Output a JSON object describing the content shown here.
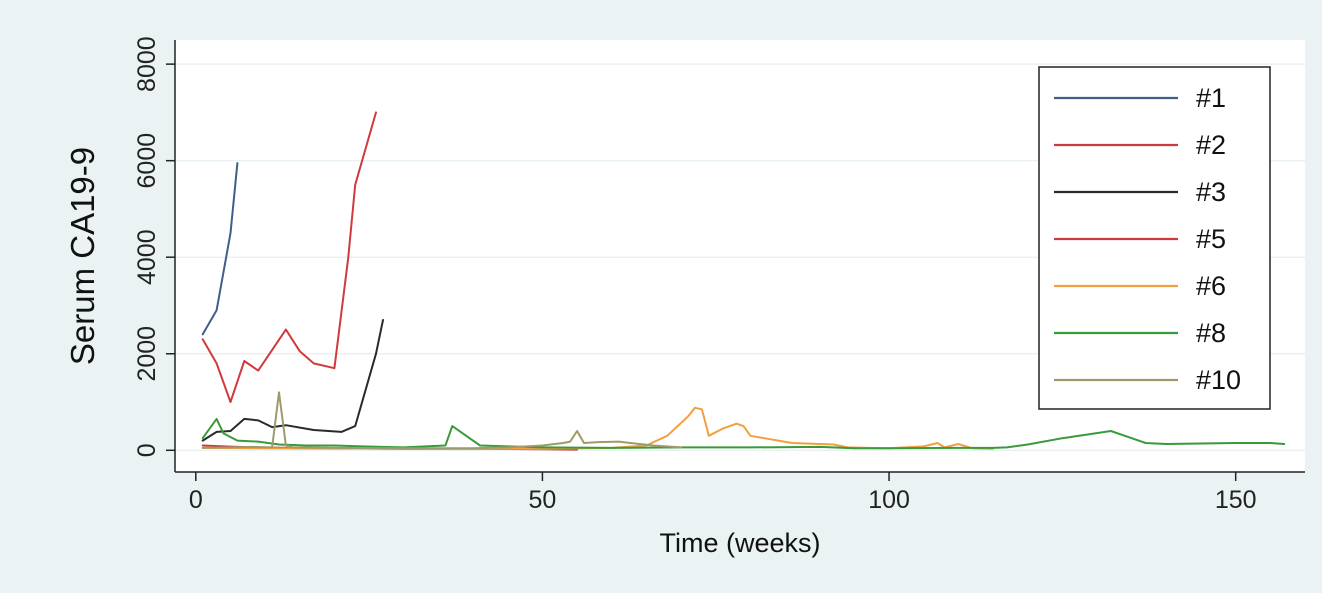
{
  "chart_data": {
    "type": "line",
    "title": "",
    "xlabel": "Time (weeks)",
    "ylabel": "Serum CA19-9",
    "xlim": [
      -3,
      160
    ],
    "ylim": [
      -450,
      8500
    ],
    "x_ticks": [
      0,
      50,
      100,
      150
    ],
    "y_ticks": [
      0,
      2000,
      4000,
      6000,
      8000
    ],
    "grid": "horizontal",
    "legend_position": "top-right",
    "series": [
      {
        "name": "#1",
        "color": "#3f5f8a",
        "points": [
          [
            1,
            2400
          ],
          [
            3,
            2900
          ],
          [
            5,
            4500
          ],
          [
            6,
            5950
          ]
        ]
      },
      {
        "name": "#2",
        "color": "#cf3a3d",
        "points": [
          [
            1,
            2300
          ],
          [
            3,
            1800
          ],
          [
            5,
            1000
          ],
          [
            7,
            1850
          ],
          [
            9,
            1650
          ],
          [
            13,
            2500
          ],
          [
            15,
            2050
          ],
          [
            17,
            1800
          ],
          [
            20,
            1700
          ],
          [
            22,
            4000
          ],
          [
            23,
            5500
          ],
          [
            26,
            7000
          ]
        ]
      },
      {
        "name": "#3",
        "color": "#2a2a2a",
        "points": [
          [
            1,
            200
          ],
          [
            3,
            380
          ],
          [
            5,
            400
          ],
          [
            7,
            650
          ],
          [
            9,
            620
          ],
          [
            11,
            480
          ],
          [
            13,
            520
          ],
          [
            17,
            420
          ],
          [
            21,
            380
          ],
          [
            23,
            500
          ],
          [
            26,
            2000
          ],
          [
            27,
            2700
          ]
        ]
      },
      {
        "name": "#5",
        "color": "#cf3a3d",
        "points": [
          [
            1,
            100
          ],
          [
            4,
            80
          ],
          [
            8,
            60
          ],
          [
            14,
            50
          ],
          [
            20,
            40
          ],
          [
            30,
            30
          ],
          [
            40,
            30
          ],
          [
            50,
            20
          ],
          [
            55,
            15
          ]
        ]
      },
      {
        "name": "#6",
        "color": "#f0a040",
        "points": [
          [
            1,
            50
          ],
          [
            10,
            40
          ],
          [
            20,
            35
          ],
          [
            30,
            40
          ],
          [
            40,
            35
          ],
          [
            50,
            30
          ],
          [
            60,
            50
          ],
          [
            65,
            100
          ],
          [
            68,
            300
          ],
          [
            71,
            700
          ],
          [
            72,
            880
          ],
          [
            73,
            850
          ],
          [
            74,
            300
          ],
          [
            76,
            450
          ],
          [
            78,
            550
          ],
          [
            79,
            500
          ],
          [
            80,
            300
          ],
          [
            82,
            250
          ],
          [
            84,
            200
          ],
          [
            86,
            150
          ],
          [
            90,
            130
          ],
          [
            92,
            120
          ],
          [
            94,
            60
          ],
          [
            97,
            50
          ],
          [
            100,
            40
          ],
          [
            105,
            80
          ],
          [
            107,
            150
          ],
          [
            108,
            60
          ],
          [
            110,
            130
          ],
          [
            112,
            40
          ],
          [
            115,
            30
          ]
        ]
      },
      {
        "name": "#8",
        "color": "#3a9a3a",
        "points": [
          [
            1,
            250
          ],
          [
            3,
            650
          ],
          [
            4,
            350
          ],
          [
            6,
            200
          ],
          [
            9,
            180
          ],
          [
            12,
            120
          ],
          [
            16,
            100
          ],
          [
            20,
            100
          ],
          [
            24,
            80
          ],
          [
            30,
            60
          ],
          [
            36,
            100
          ],
          [
            37,
            500
          ],
          [
            39,
            300
          ],
          [
            41,
            100
          ],
          [
            45,
            80
          ],
          [
            50,
            60
          ],
          [
            60,
            50
          ],
          [
            70,
            60
          ],
          [
            80,
            60
          ],
          [
            90,
            70
          ],
          [
            95,
            40
          ],
          [
            100,
            40
          ],
          [
            110,
            50
          ],
          [
            115,
            50
          ],
          [
            117,
            60
          ],
          [
            120,
            120
          ],
          [
            125,
            250
          ],
          [
            132,
            400
          ],
          [
            134,
            300
          ],
          [
            137,
            150
          ],
          [
            140,
            130
          ],
          [
            145,
            140
          ],
          [
            150,
            150
          ],
          [
            155,
            150
          ],
          [
            157,
            130
          ]
        ]
      },
      {
        "name": "#10",
        "color": "#a09a6a",
        "points": [
          [
            1,
            50
          ],
          [
            5,
            60
          ],
          [
            8,
            70
          ],
          [
            11,
            60
          ],
          [
            12,
            1200
          ],
          [
            13,
            100
          ],
          [
            14,
            60
          ],
          [
            20,
            50
          ],
          [
            30,
            40
          ],
          [
            40,
            40
          ],
          [
            45,
            60
          ],
          [
            50,
            100
          ],
          [
            53,
            150
          ],
          [
            54,
            180
          ],
          [
            55,
            400
          ],
          [
            56,
            150
          ],
          [
            58,
            170
          ],
          [
            61,
            180
          ],
          [
            64,
            130
          ],
          [
            66,
            100
          ],
          [
            70,
            60
          ]
        ]
      }
    ]
  }
}
